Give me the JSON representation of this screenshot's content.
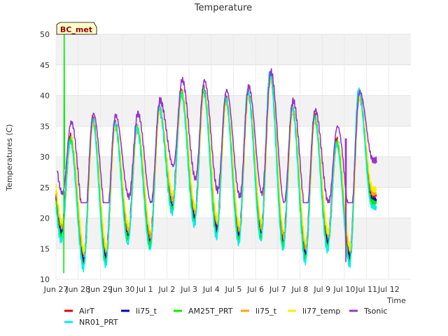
{
  "chart_data": {
    "type": "line",
    "title": "Temperature",
    "xlabel": "Time",
    "ylabel": "Temperatures (C)",
    "badge": "BC_met",
    "ylim": [
      10,
      50
    ],
    "xlim": [
      0,
      16
    ],
    "yticks": [
      10,
      15,
      20,
      25,
      30,
      35,
      40,
      45,
      50
    ],
    "xticks": [
      {
        "v": 0,
        "label": "Jun 27"
      },
      {
        "v": 1,
        "label": "Jun 28"
      },
      {
        "v": 2,
        "label": "Jun 29"
      },
      {
        "v": 3,
        "label": "Jun 30"
      },
      {
        "v": 4,
        "label": "Jul 1"
      },
      {
        "v": 5,
        "label": "Jul 2"
      },
      {
        "v": 6,
        "label": "Jul 3"
      },
      {
        "v": 7,
        "label": "Jul 4"
      },
      {
        "v": 8,
        "label": "Jul 5"
      },
      {
        "v": 9,
        "label": "Jul 6"
      },
      {
        "v": 10,
        "label": "Jul 7"
      },
      {
        "v": 11,
        "label": "Jul 8"
      },
      {
        "v": 12,
        "label": "Jul 9"
      },
      {
        "v": 13,
        "label": "Jul 10"
      },
      {
        "v": 14,
        "label": "Jul 11"
      },
      {
        "v": 15,
        "label": "Jul 12"
      }
    ],
    "grid": true,
    "legend_position": "bottom",
    "x_unit": "days after Jun 27",
    "base_days": [
      {
        "day": 0,
        "min": 17.5,
        "max": 32.5
      },
      {
        "day": 1,
        "min": 13.0,
        "max": 35.5
      },
      {
        "day": 2,
        "min": 13.5,
        "max": 35.0
      },
      {
        "day": 3,
        "min": 17.0,
        "max": 34.5
      },
      {
        "day": 4,
        "min": 16.0,
        "max": 37.5
      },
      {
        "day": 5,
        "min": 22.0,
        "max": 40.0
      },
      {
        "day": 6,
        "min": 20.0,
        "max": 40.5
      },
      {
        "day": 7,
        "min": 18.0,
        "max": 39.0
      },
      {
        "day": 8,
        "min": 17.0,
        "max": 40.0
      },
      {
        "day": 9,
        "min": 17.5,
        "max": 43.0
      },
      {
        "day": 10,
        "min": 16.0,
        "max": 37.5
      },
      {
        "day": 11,
        "min": 14.0,
        "max": 36.0
      },
      {
        "day": 12,
        "min": 16.0,
        "max": 32.0
      },
      {
        "day": 13,
        "min": 13.5,
        "max": 40.0
      },
      {
        "day": 14,
        "min": 23.0,
        "max": 23.0
      }
    ],
    "series": [
      {
        "name": "AirT",
        "color": "#dd0000",
        "offset": 0.0,
        "amp": 1.0,
        "minShift": 0.8,
        "phase": 0.0
      },
      {
        "name": "li75_t",
        "color": "#0000bb",
        "offset": 0.0,
        "amp": 1.0,
        "minShift": 0.0,
        "phase": 0.01
      },
      {
        "name": "AM25T_PRT",
        "color": "#00ee00",
        "offset": 0.0,
        "amp": 1.05,
        "minShift": -0.5,
        "phase": 0.0
      },
      {
        "name": "li75_t",
        "color": "#ffa500",
        "offset": 0.0,
        "amp": 0.95,
        "minShift": 1.0,
        "phase": 0.02
      },
      {
        "name": "li77_temp",
        "color": "#ffee00",
        "offset": 0.0,
        "amp": 0.92,
        "minShift": 1.8,
        "phase": 0.03
      },
      {
        "name": "Tsonic",
        "color": "#9933cc",
        "offset": 0.0,
        "amp": 0.78,
        "minShift": 6.5,
        "phase": 0.04
      },
      {
        "name": "NR01_PRT",
        "color": "#00eeee",
        "offset": 0.0,
        "amp": 1.08,
        "minShift": -1.2,
        "phase": -0.01
      }
    ],
    "spikes": [
      {
        "series": "AM25T_PRT",
        "x": 0.35,
        "values": [
          11,
          50,
          28
        ]
      },
      {
        "series": "Tsonic",
        "x": 13.05,
        "values": [
          33,
          12.8,
          33
        ]
      }
    ],
    "legend": [
      {
        "name": "AirT",
        "color": "#dd0000"
      },
      {
        "name": "li75_t",
        "color": "#0000bb"
      },
      {
        "name": "AM25T_PRT",
        "color": "#00ee00"
      },
      {
        "name": "li75_t",
        "color": "#ffa500"
      },
      {
        "name": "li77_temp",
        "color": "#ffee00"
      },
      {
        "name": "Tsonic",
        "color": "#9933cc"
      },
      {
        "name": "NR01_PRT",
        "color": "#00eeee"
      }
    ]
  }
}
